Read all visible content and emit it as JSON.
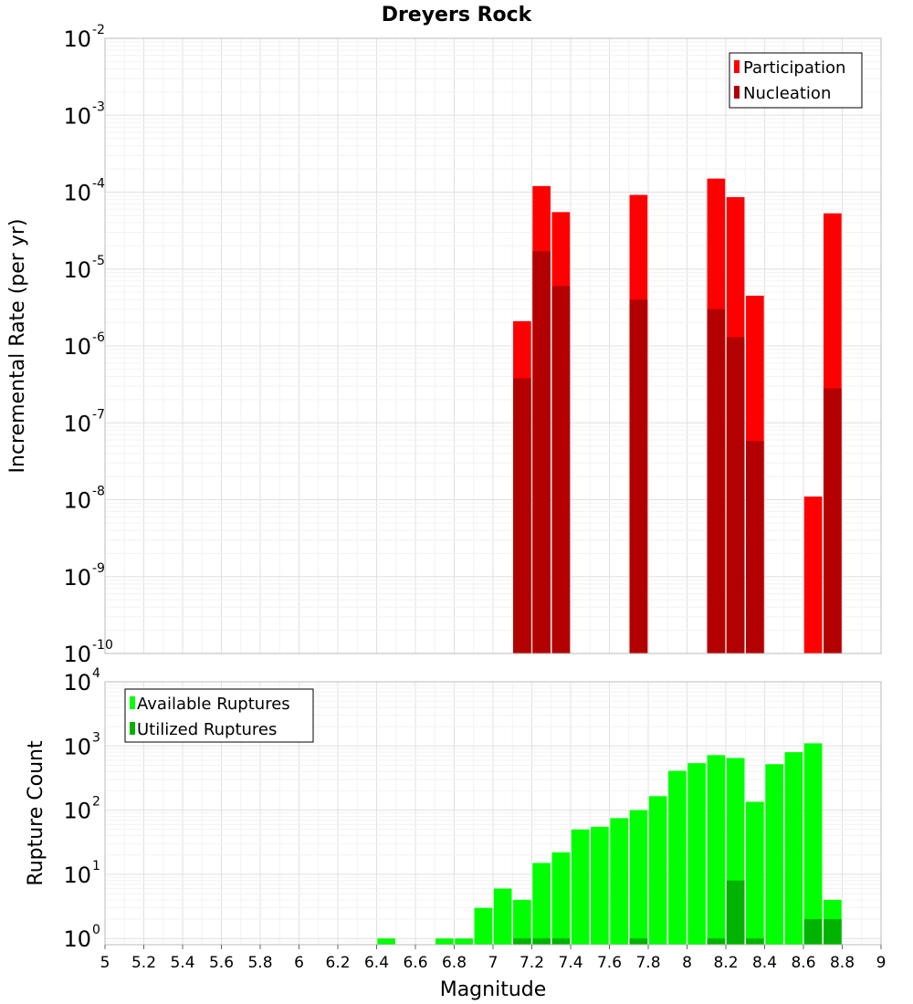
{
  "figure_title": "Dreyers Rock",
  "colors": {
    "participation": "#ff0000",
    "nucleation": "#b30000",
    "available": "#00ff00",
    "utilized": "#00b300",
    "grid_major": "#e0e0e0",
    "grid_minor": "#f2f2f2",
    "frame": "#bbbbbb"
  },
  "chart_data": [
    {
      "type": "bar",
      "title": "Dreyers Rock",
      "ylabel": "Incremental Rate (per yr)",
      "xlabel": "",
      "yscale": "log",
      "xlim": [
        5,
        9
      ],
      "ylim": [
        1e-10,
        0.01
      ],
      "ytick_exponents": [
        -10,
        -9,
        -8,
        -7,
        -6,
        -5,
        -4,
        -3,
        -2
      ],
      "legend": {
        "position": "top-right",
        "entries": [
          "Participation",
          "Nucleation"
        ]
      },
      "x": [
        7.15,
        7.25,
        7.35,
        7.75,
        8.15,
        8.25,
        8.35,
        8.65,
        8.75
      ],
      "series": [
        {
          "name": "Participation",
          "values": [
            2.1e-06,
            0.00012,
            5.5e-05,
            9.2e-05,
            0.00015,
            8.6e-05,
            4.5e-06,
            1.1e-08,
            5.3e-05
          ]
        },
        {
          "name": "Nucleation",
          "values": [
            3.8e-07,
            1.7e-05,
            6e-06,
            4e-06,
            3e-06,
            1.3e-06,
            5.8e-08,
            null,
            2.8e-07
          ]
        }
      ]
    },
    {
      "type": "bar",
      "title": "",
      "ylabel": "Rupture Count",
      "xlabel": "Magnitude",
      "yscale": "log",
      "xlim": [
        5,
        9
      ],
      "ylim": [
        0.8,
        10000
      ],
      "ytick_exponents": [
        0,
        1,
        2,
        3,
        4
      ],
      "xticks": [
        "5",
        "5.2",
        "5.4",
        "5.6",
        "5.8",
        "6",
        "6.2",
        "6.4",
        "6.6",
        "6.8",
        "7",
        "7.2",
        "7.4",
        "7.6",
        "7.8",
        "8",
        "8.2",
        "8.4",
        "8.6",
        "8.8",
        "9"
      ],
      "legend": {
        "position": "top-left",
        "entries": [
          "Available Ruptures",
          "Utilized Ruptures"
        ]
      },
      "series": [
        {
          "name": "Available Ruptures",
          "x": [
            6.45,
            6.75,
            6.85,
            6.95,
            7.05,
            7.15,
            7.25,
            7.35,
            7.45,
            7.55,
            7.65,
            7.75,
            7.85,
            7.95,
            8.05,
            8.15,
            8.25,
            8.35,
            8.45,
            8.55,
            8.65,
            8.75
          ],
          "values": [
            1,
            1,
            1,
            3,
            6,
            4,
            15,
            22,
            50,
            55,
            75,
            100,
            165,
            410,
            540,
            720,
            650,
            135,
            520,
            800,
            1100,
            4
          ]
        },
        {
          "name": "Utilized Ruptures",
          "x": [
            7.15,
            7.25,
            7.35,
            7.75,
            8.15,
            8.25,
            8.35,
            8.65,
            8.75
          ],
          "values": [
            1,
            1,
            1,
            1,
            1,
            8,
            1,
            2,
            2
          ]
        }
      ]
    }
  ]
}
